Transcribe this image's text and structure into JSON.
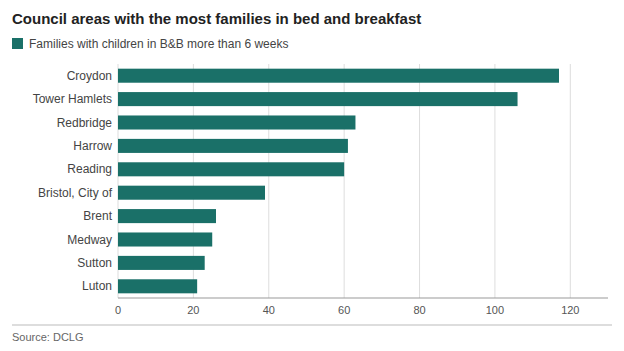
{
  "chart_data": {
    "type": "bar",
    "orientation": "horizontal",
    "title": "Council areas with the most families in bed and breakfast",
    "categories": [
      "Croydon",
      "Tower Hamlets",
      "Redbridge",
      "Harrow",
      "Reading",
      "Bristol, City of",
      "Brent",
      "Medway",
      "Sutton",
      "Luton"
    ],
    "series": [
      {
        "name": "Families with children in B&B more than 6 weeks",
        "color": "#1a7068",
        "values": [
          117,
          106,
          63,
          61,
          60,
          39,
          26,
          25,
          23,
          21
        ]
      }
    ],
    "xlim": [
      0,
      130
    ],
    "xticks": [
      0,
      20,
      40,
      60,
      80,
      100,
      120
    ],
    "grid": true,
    "annotations": [
      "Source: DCLG"
    ]
  }
}
